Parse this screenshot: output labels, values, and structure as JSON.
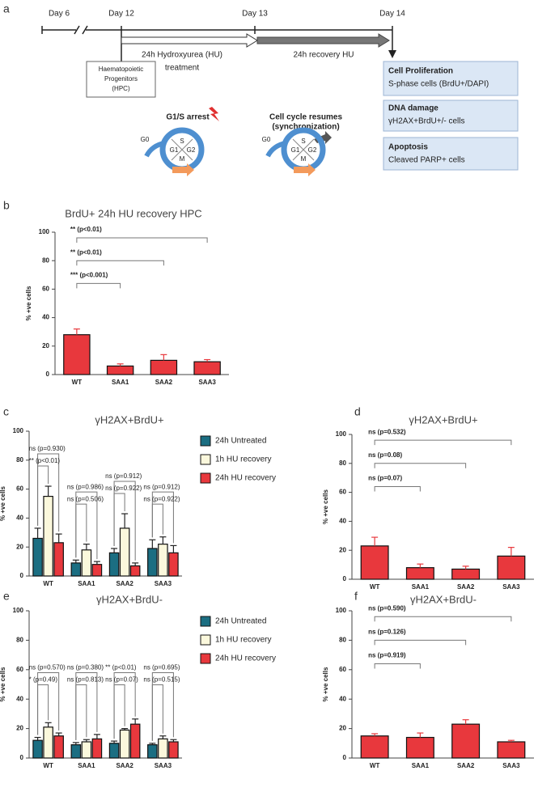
{
  "diagram": {
    "label": "a",
    "days": [
      "Day 6",
      "Day 12",
      "Day 13",
      "Day 14"
    ],
    "treatment": [
      "24h Hydroxyurea (HU)",
      "treatment"
    ],
    "recovery": "24h recovery HU",
    "cells": [
      "Haematopoietic",
      "Progenitors",
      "(HPC)"
    ],
    "readouts": [
      {
        "title": "Cell Proliferation",
        "detail": "S-phase cells (BrdU+/DAPI)"
      },
      {
        "title": "DNA damage",
        "detail": "γH2AX+BrdU+/- cells"
      },
      {
        "title": "Apoptosis",
        "detail": "Cleaved PARP+ cells"
      }
    ],
    "arrest": "G1/S arrest",
    "resume": [
      "Cell cycle resumes",
      "(synchronization)"
    ],
    "phases": [
      "S",
      "G1",
      "G2",
      "M",
      "G0"
    ]
  },
  "chart_data": [
    {
      "panel": "b",
      "type": "bar",
      "title": "BrdU+ 24h HU recovery HPC",
      "ylabel": "% +ve cells",
      "categories": [
        "WT",
        "SAA1",
        "SAA2",
        "SAA3"
      ],
      "values": [
        28,
        6,
        10,
        9
      ],
      "errors": [
        4,
        1.5,
        4,
        1.5
      ],
      "color": "#e8383d",
      "ylim": [
        0,
        100
      ],
      "yticks": [
        0,
        20,
        40,
        60,
        80,
        100
      ],
      "annotations": [
        "*** (p<0.001)",
        "** (p<0.01)",
        "** (p<0.01)"
      ]
    },
    {
      "panel": "c",
      "type": "bar",
      "title": "γH2AX+BrdU+",
      "ylabel": "% +ve cells",
      "categories": [
        "WT",
        "SAA1",
        "SAA2",
        "SAA3"
      ],
      "series": [
        {
          "name": "24h Untreated",
          "color": "#1b6e82",
          "values": [
            26,
            9,
            16,
            19
          ],
          "errors": [
            7,
            2,
            3,
            6
          ]
        },
        {
          "name": "1h HU recovery",
          "color": "#fbf8dc",
          "values": [
            55,
            18,
            33,
            22
          ],
          "errors": [
            7,
            4,
            10,
            5
          ]
        },
        {
          "name": "24h HU recovery",
          "color": "#e8383d",
          "values": [
            23,
            8,
            7,
            16
          ],
          "errors": [
            6,
            2,
            2,
            5
          ]
        }
      ],
      "legend": "right",
      "ylim": [
        0,
        100
      ],
      "yticks": [
        0,
        20,
        40,
        60,
        80,
        100
      ],
      "annotations": [
        "ns (p=0.930)",
        "** (p<0.01)",
        "ns (p=0.986)",
        "ns (p=0.506)",
        "ns (p=0.912)",
        "ns (p=0.922)",
        "ns (p=0.912)",
        "ns (p=0.922)"
      ]
    },
    {
      "panel": "d",
      "type": "bar",
      "title": "γH2AX+BrdU+",
      "ylabel": "% +ve cells",
      "categories": [
        "WT",
        "SAA1",
        "SAA2",
        "SAA3"
      ],
      "values": [
        23,
        8,
        7,
        16
      ],
      "errors": [
        6,
        2.5,
        2,
        6
      ],
      "color": "#e8383d",
      "ylim": [
        0,
        100
      ],
      "yticks": [
        0,
        20,
        40,
        60,
        80,
        100
      ],
      "annotations": [
        "ns (p=0.07)",
        "ns (p=0.08)",
        "ns (p=0.532)"
      ]
    },
    {
      "panel": "e",
      "type": "bar",
      "title": "γH2AX+BrdU-",
      "ylabel": "% +ve cells",
      "categories": [
        "WT",
        "SAA1",
        "SAA2",
        "SAA3"
      ],
      "series": [
        {
          "name": "24h Untreated",
          "color": "#1b6e82",
          "values": [
            12,
            9,
            10,
            9
          ],
          "errors": [
            2,
            1.5,
            1.5,
            1
          ]
        },
        {
          "name": "1h HU recovery",
          "color": "#fbf8dc",
          "values": [
            21,
            11,
            19,
            13
          ],
          "errors": [
            3,
            1.5,
            1,
            2
          ]
        },
        {
          "name": "24h HU recovery",
          "color": "#e8383d",
          "values": [
            15,
            13,
            23,
            11
          ],
          "errors": [
            2,
            3,
            3.5,
            1.5
          ]
        }
      ],
      "legend": "right",
      "ylim": [
        0,
        100
      ],
      "yticks": [
        0,
        20,
        40,
        60,
        80,
        100
      ],
      "annotations": [
        "ns (p=0.570)",
        "* (p=0.49)",
        "ns (p=0.380)",
        "ns (p=0.813)",
        "** (p<0.01)",
        "ns (p=0.07)",
        "ns (p=0.695)",
        "ns (p=0.515)"
      ]
    },
    {
      "panel": "f",
      "type": "bar",
      "title": "γH2AX+BrdU-",
      "ylabel": "% +ve cells",
      "categories": [
        "WT",
        "SAA1",
        "SAA2",
        "SAA3"
      ],
      "values": [
        15,
        14,
        23,
        11
      ],
      "errors": [
        1.5,
        3,
        3,
        1
      ],
      "color": "#e8383d",
      "ylim": [
        0,
        100
      ],
      "yticks": [
        0,
        20,
        40,
        60,
        80,
        100
      ],
      "annotations": [
        "ns (p=0.919)",
        "ns (p=0.126)",
        "ns (p=0.590)"
      ]
    }
  ]
}
